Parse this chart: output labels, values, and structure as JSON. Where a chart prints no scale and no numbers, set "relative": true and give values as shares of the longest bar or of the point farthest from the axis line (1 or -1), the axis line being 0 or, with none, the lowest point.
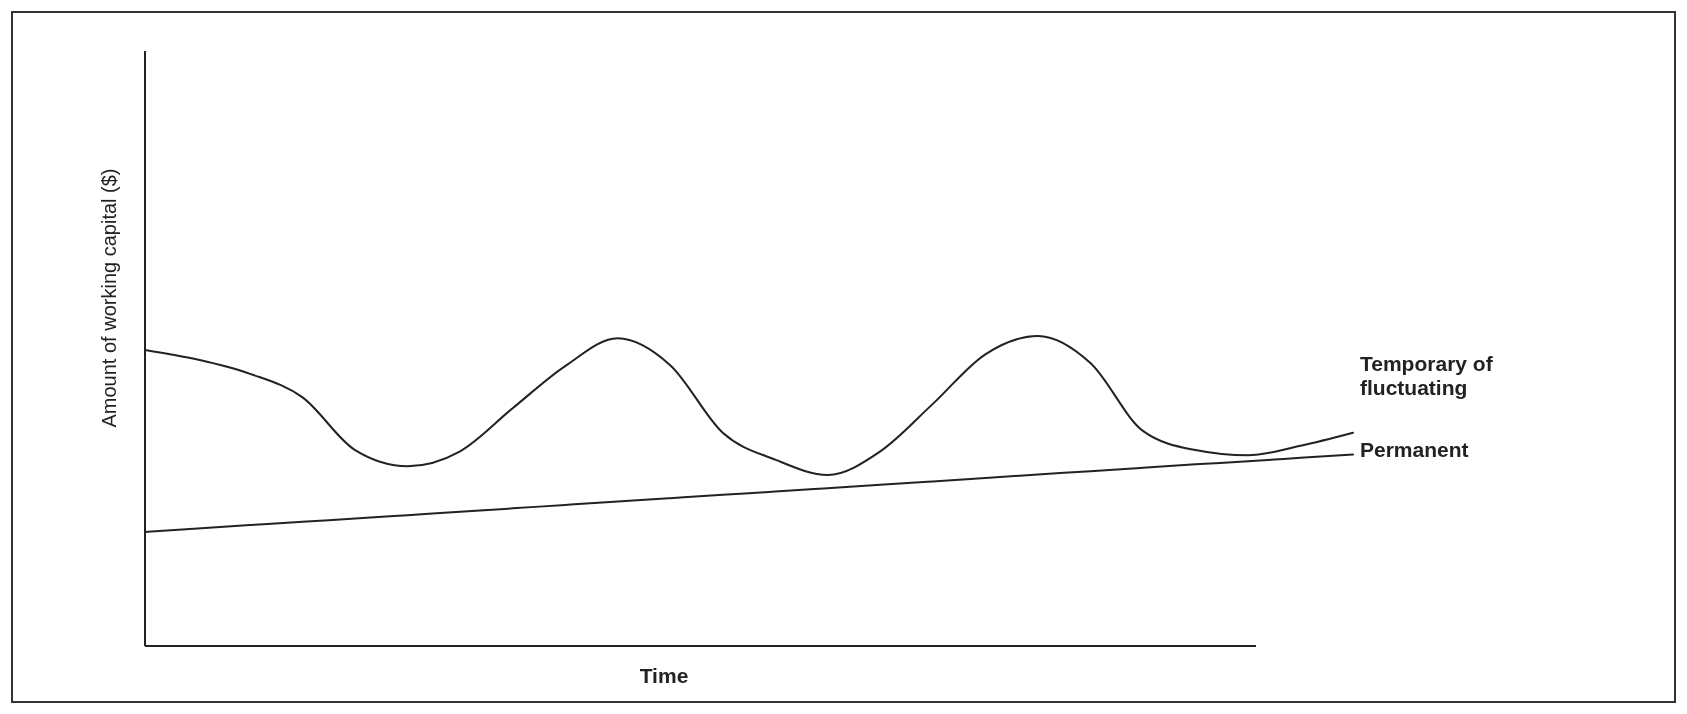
{
  "chart_data": {
    "type": "line",
    "relative": true,
    "xlabel": "Time",
    "ylabel": "Amount of working capital  ($)",
    "categories": [
      null,
      null,
      null,
      null,
      null,
      null,
      null,
      null,
      null,
      null,
      null,
      null,
      null,
      null,
      null,
      null,
      null,
      null,
      null,
      null,
      null,
      null,
      null,
      null
    ],
    "series": [
      {
        "name": "Temporary of fluctuating",
        "color": "#222222",
        "values": [
          0.955,
          0.924,
          0.878,
          0.802,
          0.632,
          0.58,
          0.628,
          0.767,
          0.903,
          0.993,
          0.906,
          0.688,
          0.601,
          0.552,
          0.628,
          0.781,
          0.941,
          1,
          0.913,
          0.694,
          0.632,
          0.615,
          0.646,
          0.688
        ]
      },
      {
        "name": "Permanent",
        "color": "#222222",
        "values": [
          0.368,
          0.379,
          0.39,
          0.401,
          0.411,
          0.422,
          0.433,
          0.444,
          0.455,
          0.466,
          0.477,
          0.488,
          0.498,
          0.509,
          0.52,
          0.531,
          0.542,
          0.553,
          0.564,
          0.575,
          0.586,
          0.596,
          0.607,
          0.618
        ]
      }
    ]
  }
}
